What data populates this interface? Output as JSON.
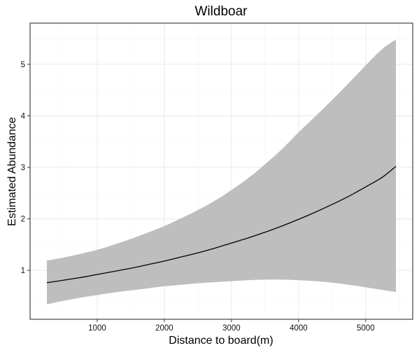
{
  "chart_data": {
    "type": "line",
    "title": "Wildboar",
    "xlabel": "Distance to board(m)",
    "ylabel": "Estimated Abundance",
    "xlim": [
      0,
      5700
    ],
    "ylim": [
      0.05,
      5.8
    ],
    "xticks": [
      1000,
      2000,
      3000,
      4000,
      5000
    ],
    "yticks": [
      1,
      2,
      3,
      4,
      5
    ],
    "grid": true,
    "legend": "none",
    "series": [
      {
        "x": [
          250,
          500,
          750,
          1000,
          1250,
          1500,
          1750,
          2000,
          2250,
          2500,
          2750,
          3000,
          3250,
          3500,
          3750,
          4000,
          4250,
          4500,
          4750,
          5000,
          5250,
          5450
        ],
        "fit": [
          0.76,
          0.81,
          0.86,
          0.92,
          0.98,
          1.04,
          1.11,
          1.18,
          1.26,
          1.34,
          1.43,
          1.53,
          1.63,
          1.74,
          1.86,
          1.99,
          2.13,
          2.28,
          2.44,
          2.62,
          2.81,
          3.02
        ],
        "lower": [
          0.34,
          0.41,
          0.47,
          0.52,
          0.57,
          0.61,
          0.65,
          0.69,
          0.72,
          0.75,
          0.77,
          0.79,
          0.81,
          0.82,
          0.82,
          0.81,
          0.79,
          0.76,
          0.72,
          0.67,
          0.62,
          0.58
        ],
        "upper": [
          1.19,
          1.25,
          1.32,
          1.4,
          1.5,
          1.61,
          1.73,
          1.86,
          2.01,
          2.17,
          2.35,
          2.56,
          2.79,
          3.06,
          3.35,
          3.68,
          3.99,
          4.31,
          4.64,
          4.98,
          5.3,
          5.48
        ]
      }
    ],
    "colors": {
      "line": "#000000",
      "ribbon": "#bebebe",
      "panel_border": "#333333",
      "grid_major": "#ebebeb",
      "grid_minor": "#f4f4f4"
    }
  }
}
